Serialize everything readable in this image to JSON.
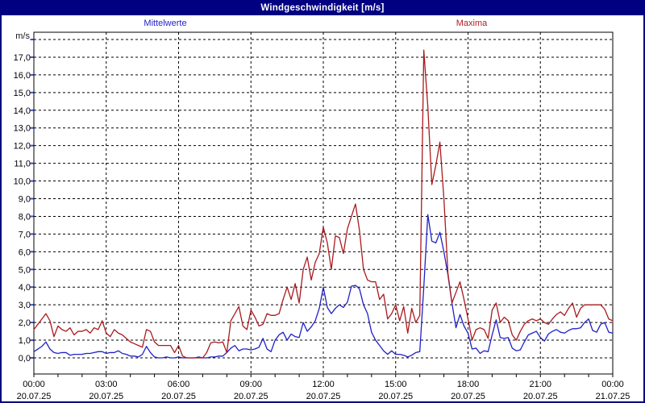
{
  "window": {
    "title": "Windgeschwindigkeit [m/s]"
  },
  "legend": {
    "mean_label": "Mittelwerte",
    "max_label": "Maxima",
    "mean_color": "#2323cb",
    "max_color": "#b42025"
  },
  "chart_data": {
    "type": "line",
    "title": "Windgeschwindigkeit [m/s]",
    "ylabel": "m/s",
    "xlabel": "",
    "ylim": [
      0,
      18
    ],
    "y_tick_step": 1,
    "y_tick_labels": [
      "0,0",
      "1,0",
      "2,0",
      "3,0",
      "4,0",
      "5,0",
      "6,0",
      "7,0",
      "8,0",
      "9,0",
      "10,0",
      "11,0",
      "12,0",
      "13,0",
      "14,0",
      "15,0",
      "16,0",
      "17,0"
    ],
    "grid": "dashed-black",
    "frame_color": "#000000",
    "left_tick_color": "#3a55d6",
    "legend_position": "top",
    "x_start": "00:00",
    "x_interval_minutes": 10,
    "x_hours_total": 24,
    "x_axis_ticks": [
      {
        "time": "00:00",
        "date": "20.07.25"
      },
      {
        "time": "03:00",
        "date": "20.07.25"
      },
      {
        "time": "06:00",
        "date": "20.07.25"
      },
      {
        "time": "09:00",
        "date": "20.07.25"
      },
      {
        "time": "12:00",
        "date": "20.07.25"
      },
      {
        "time": "15:00",
        "date": "20.07.25"
      },
      {
        "time": "18:00",
        "date": "20.07.25"
      },
      {
        "time": "21:00",
        "date": "20.07.25"
      },
      {
        "time": "00:00",
        "date": "21.07.25"
      }
    ],
    "series": [
      {
        "name": "Mittelwerte",
        "color": "#2020c8",
        "values": [
          0.35,
          0.5,
          0.65,
          0.9,
          0.5,
          0.3,
          0.25,
          0.3,
          0.3,
          0.15,
          0.2,
          0.2,
          0.2,
          0.25,
          0.25,
          0.3,
          0.35,
          0.35,
          0.25,
          0.3,
          0.3,
          0.4,
          0.25,
          0.2,
          0.1,
          0.1,
          0.05,
          0.2,
          0.65,
          0.3,
          0.05,
          0.0,
          0.0,
          0.05,
          0.0,
          0.0,
          0.05,
          0.0,
          0.0,
          0.0,
          0.0,
          0.05,
          0.0,
          0.0,
          0.05,
          0.05,
          0.1,
          0.1,
          0.3,
          0.55,
          0.7,
          0.4,
          0.5,
          0.5,
          0.45,
          0.5,
          0.6,
          1.1,
          0.5,
          0.35,
          1.0,
          1.3,
          1.45,
          1.0,
          1.35,
          1.2,
          1.15,
          2.0,
          1.5,
          1.75,
          2.1,
          2.8,
          4.0,
          2.85,
          2.5,
          2.8,
          3.0,
          2.85,
          3.15,
          4.05,
          4.1,
          3.9,
          3.0,
          2.5,
          1.45,
          1.0,
          0.7,
          0.4,
          0.2,
          0.4,
          0.2,
          0.2,
          0.15,
          0.05,
          0.15,
          0.3,
          0.35,
          4.0,
          8.1,
          6.6,
          6.5,
          7.1,
          6.0,
          4.7,
          3.1,
          1.7,
          2.45,
          1.8,
          1.4,
          0.5,
          0.55,
          0.25,
          0.4,
          0.35,
          1.3,
          2.15,
          1.15,
          1.1,
          1.15,
          0.55,
          0.4,
          0.45,
          0.9,
          1.3,
          1.4,
          1.5,
          1.15,
          0.95,
          1.35,
          1.5,
          1.6,
          1.45,
          1.4,
          1.55,
          1.65,
          1.65,
          1.7,
          2.0,
          2.2,
          1.55,
          1.45,
          1.9,
          2.0,
          1.45,
          1.4
        ]
      },
      {
        "name": "Maxima",
        "color": "#aa1a1e",
        "values": [
          1.6,
          1.9,
          2.2,
          2.5,
          2.1,
          1.2,
          1.8,
          1.6,
          1.5,
          1.7,
          1.3,
          1.5,
          1.5,
          1.6,
          1.4,
          1.7,
          1.6,
          2.1,
          1.4,
          1.2,
          1.6,
          1.4,
          1.3,
          1.1,
          0.9,
          0.8,
          0.7,
          0.6,
          1.6,
          1.5,
          0.9,
          0.7,
          0.7,
          0.7,
          0.7,
          0.3,
          0.7,
          0.1,
          0.0,
          0.0,
          0.0,
          0.0,
          0.0,
          0.3,
          0.85,
          0.9,
          0.85,
          0.9,
          0.3,
          2.1,
          2.5,
          2.9,
          1.8,
          1.6,
          2.7,
          2.3,
          1.8,
          1.9,
          2.5,
          2.4,
          2.4,
          2.5,
          3.3,
          4.0,
          3.3,
          4.2,
          3.1,
          5.0,
          5.7,
          4.4,
          5.4,
          5.9,
          7.4,
          6.5,
          5.0,
          6.9,
          6.8,
          5.9,
          7.3,
          8.0,
          8.7,
          7.2,
          5.0,
          4.4,
          4.3,
          4.3,
          3.3,
          3.6,
          2.2,
          2.5,
          3.0,
          2.1,
          2.9,
          1.4,
          2.8,
          2.0,
          2.4,
          17.4,
          14.2,
          9.8,
          10.9,
          12.2,
          9.0,
          4.8,
          3.1,
          3.7,
          4.3,
          3.3,
          2.2,
          1.0,
          1.6,
          1.7,
          1.6,
          1.1,
          2.7,
          3.1,
          2.0,
          2.3,
          2.1,
          1.3,
          1.0,
          1.5,
          1.9,
          2.1,
          2.2,
          2.1,
          2.2,
          2.0,
          1.9,
          2.2,
          2.45,
          2.6,
          2.4,
          2.8,
          3.1,
          2.3,
          2.8,
          3.0,
          3.0,
          3.0,
          3.0,
          3.0,
          2.75,
          2.2,
          2.1
        ]
      }
    ]
  }
}
